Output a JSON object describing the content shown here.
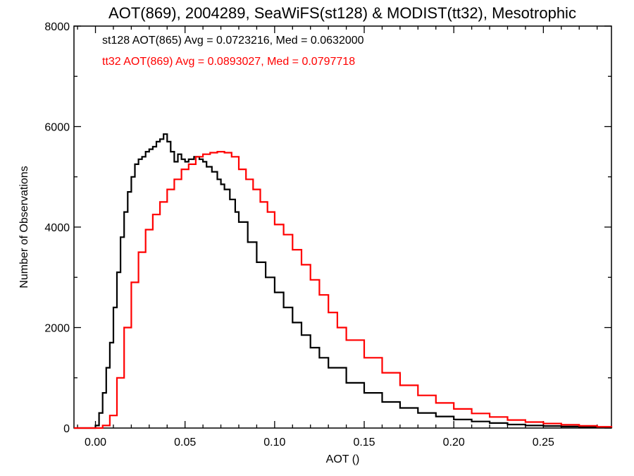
{
  "chart_data": {
    "type": "line",
    "title": "AOT(869), 2004289, SeaWiFS(st128) & MODIST(tt32), Mesotrophic",
    "xlabel": "AOT ()",
    "ylabel": "Number of Observations",
    "xlim": [
      -0.012,
      0.288
    ],
    "ylim": [
      0,
      8000
    ],
    "x_ticks": [
      0.0,
      0.05,
      0.1,
      0.15,
      0.2,
      0.25
    ],
    "x_tick_labels": [
      "0.00",
      "0.05",
      "0.10",
      "0.15",
      "0.20",
      "0.25"
    ],
    "y_ticks": [
      0,
      2000,
      4000,
      6000,
      8000
    ],
    "y_tick_labels": [
      "0",
      "2000",
      "4000",
      "6000",
      "8000"
    ],
    "grid": false,
    "legend_position": "top-left",
    "annotations": [
      {
        "text": "st128 AOT(865) Avg = 0.0723216, Med = 0.0632000",
        "color": "#000000"
      },
      {
        "text": "tt32 AOT(869) Avg = 0.0893027, Med = 0.0797718",
        "color": "#ff0000"
      }
    ],
    "series": [
      {
        "color": "#000000",
        "x": [
          -0.012,
          0.0,
          0.002,
          0.004,
          0.006,
          0.008,
          0.01,
          0.012,
          0.014,
          0.016,
          0.018,
          0.02,
          0.022,
          0.024,
          0.026,
          0.028,
          0.03,
          0.032,
          0.034,
          0.036,
          0.038,
          0.04,
          0.042,
          0.044,
          0.046,
          0.048,
          0.05,
          0.052,
          0.055,
          0.058,
          0.06,
          0.062,
          0.065,
          0.068,
          0.07,
          0.072,
          0.075,
          0.078,
          0.08,
          0.085,
          0.09,
          0.095,
          0.1,
          0.105,
          0.11,
          0.115,
          0.12,
          0.125,
          0.13,
          0.14,
          0.15,
          0.16,
          0.17,
          0.18,
          0.19,
          0.2,
          0.21,
          0.22,
          0.23,
          0.24,
          0.25,
          0.26,
          0.27,
          0.28,
          0.288
        ],
        "values": [
          0,
          50,
          300,
          700,
          1200,
          1700,
          2400,
          3100,
          3800,
          4300,
          4700,
          5000,
          5250,
          5350,
          5400,
          5500,
          5550,
          5600,
          5700,
          5750,
          5850,
          5700,
          5500,
          5300,
          5450,
          5350,
          5300,
          5350,
          5400,
          5350,
          5300,
          5200,
          5100,
          4950,
          4850,
          4750,
          4550,
          4300,
          4100,
          3700,
          3300,
          3000,
          2700,
          2400,
          2100,
          1850,
          1600,
          1400,
          1200,
          900,
          700,
          520,
          400,
          300,
          230,
          170,
          130,
          100,
          70,
          50,
          40,
          30,
          20,
          10,
          5
        ]
      },
      {
        "color": "#ff0000",
        "x": [
          -0.012,
          0.0,
          0.004,
          0.008,
          0.012,
          0.016,
          0.02,
          0.024,
          0.028,
          0.032,
          0.036,
          0.04,
          0.044,
          0.048,
          0.052,
          0.056,
          0.06,
          0.064,
          0.068,
          0.072,
          0.076,
          0.08,
          0.084,
          0.088,
          0.092,
          0.096,
          0.1,
          0.105,
          0.11,
          0.115,
          0.12,
          0.125,
          0.13,
          0.135,
          0.14,
          0.15,
          0.16,
          0.17,
          0.18,
          0.19,
          0.2,
          0.21,
          0.22,
          0.23,
          0.24,
          0.25,
          0.26,
          0.27,
          0.28,
          0.288
        ],
        "values": [
          0,
          0,
          50,
          250,
          1000,
          2000,
          2900,
          3500,
          3950,
          4250,
          4500,
          4750,
          4950,
          5150,
          5250,
          5400,
          5450,
          5480,
          5500,
          5480,
          5400,
          5150,
          4950,
          4750,
          4500,
          4300,
          4050,
          3850,
          3550,
          3250,
          2950,
          2650,
          2300,
          2000,
          1750,
          1400,
          1100,
          850,
          650,
          500,
          380,
          290,
          220,
          160,
          120,
          90,
          65,
          45,
          25,
          10
        ]
      }
    ]
  }
}
